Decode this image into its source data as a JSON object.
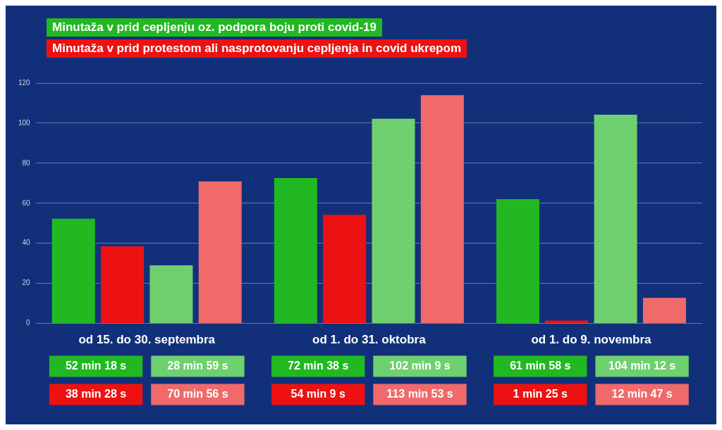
{
  "chart_data": {
    "type": "bar",
    "annotations": [
      "Minutaža v prid cepljenju oz. podpora boju proti covid-19",
      "Minutaža v prid protestom ali nasprotovanju cepljenja in covid ukrepom",
      "52 min 18 s",
      "72 min 38 s",
      "61 min 58 s",
      "38 min 28 s",
      "54 min 9 s",
      "1 min 25 s",
      "28 min 59 s",
      "102 min 9 s",
      "104 min 12 s",
      "70 min 56 s",
      "113 min 53 s",
      "12 min 47 s"
    ],
    "categories": [
      "od 15. do 30. septembra",
      "od 1. do 31. oktobra",
      "od 1. do 9. novembra"
    ],
    "series": [
      {
        "color": "#22b822",
        "values": [
          52.3,
          72.6,
          62
        ]
      },
      {
        "color": "#ee1111",
        "values": [
          38.5,
          54.2,
          1.4
        ]
      },
      {
        "color": "#6ed06e",
        "values": [
          29,
          102.2,
          104.2
        ]
      },
      {
        "color": "#f06a6a",
        "values": [
          70.9,
          113.9,
          12.8
        ]
      }
    ],
    "ylim": [
      0,
      120
    ],
    "yticks": [
      0,
      20,
      40,
      60,
      80,
      100,
      120
    ],
    "grid": "y",
    "legend": false
  }
}
